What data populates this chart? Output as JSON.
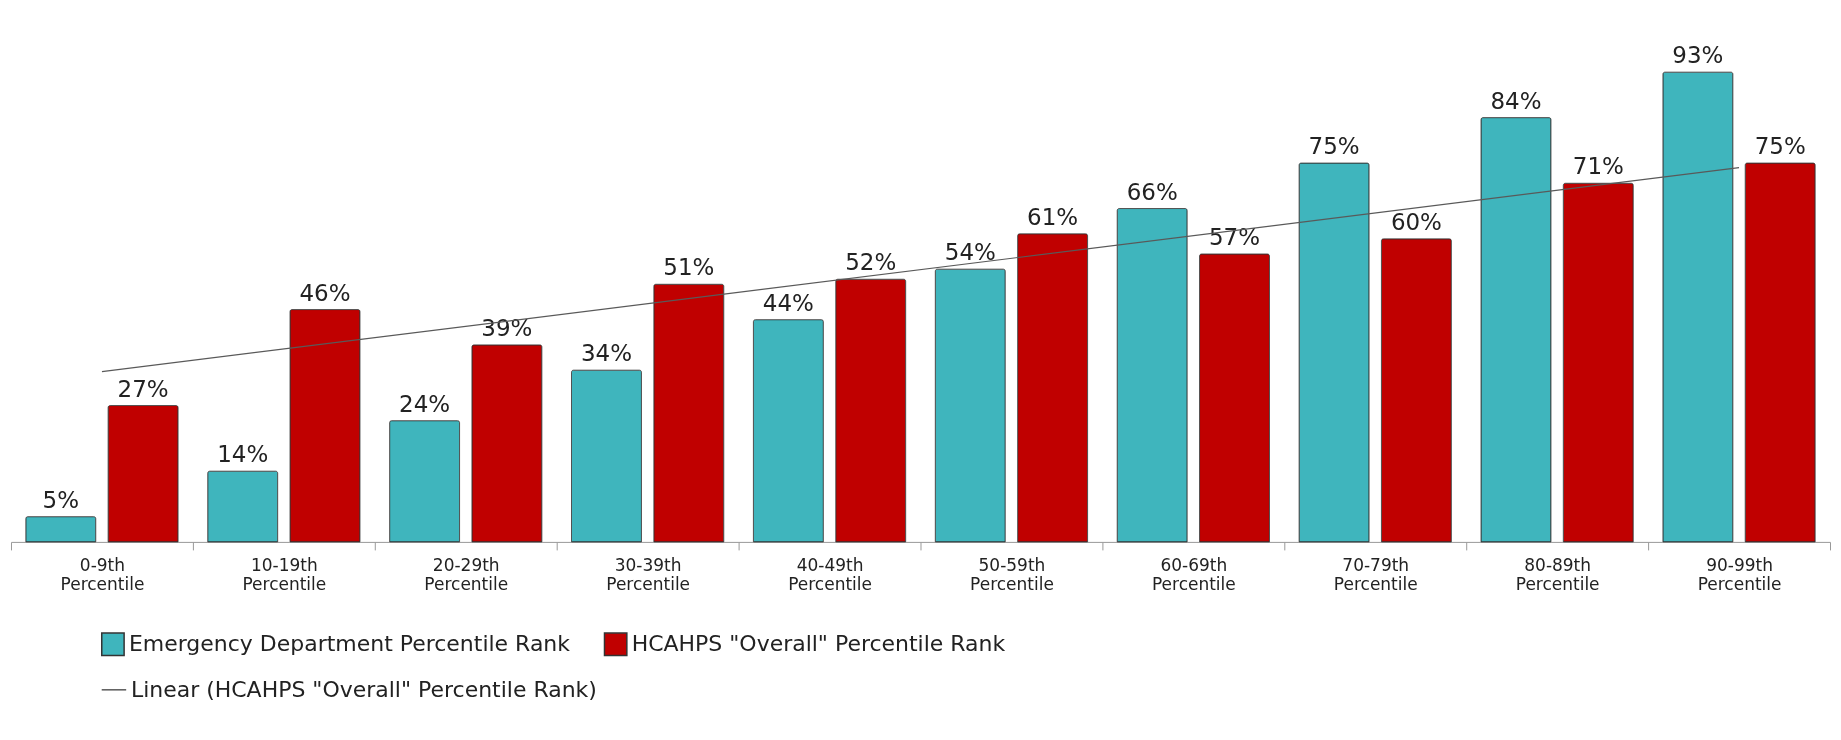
{
  "chart_data": {
    "type": "bar",
    "categories": [
      "0-9th Percentile",
      "10-19th Percentile",
      "20-29th Percentile",
      "30-39th Percentile",
      "40-49th Percentile",
      "50-59th Percentile",
      "60-69th Percentile",
      "70-79th Percentile",
      "80-89th Percentile",
      "90-99th Percentile"
    ],
    "series": [
      {
        "name": "Emergency Department Percentile Rank",
        "color": "#3fb5bd",
        "values": [
          5,
          14,
          24,
          34,
          44,
          54,
          66,
          75,
          84,
          93
        ],
        "value_labels": [
          "5%",
          "14%",
          "24%",
          "34%",
          "44%",
          "54%",
          "66%",
          "75%",
          "84%",
          "93%"
        ]
      },
      {
        "name": "HCAHPS \"Overall\" Percentile Rank",
        "color": "#c00000",
        "values": [
          27,
          46,
          39,
          51,
          52,
          61,
          57,
          60,
          71,
          75
        ],
        "value_labels": [
          "27%",
          "46%",
          "39%",
          "51%",
          "52%",
          "61%",
          "57%",
          "60%",
          "71%",
          "75%"
        ]
      },
      {
        "name": "Linear (HCAHPS \"Overall\" Percentile Rank)",
        "type": "line",
        "color": "#595959",
        "x": [
          "0-9th Percentile",
          "90-99th Percentile"
        ],
        "values": [
          33.7,
          74.1
        ]
      }
    ],
    "legend": "bottom",
    "grid": false,
    "tick_labels": "x"
  }
}
